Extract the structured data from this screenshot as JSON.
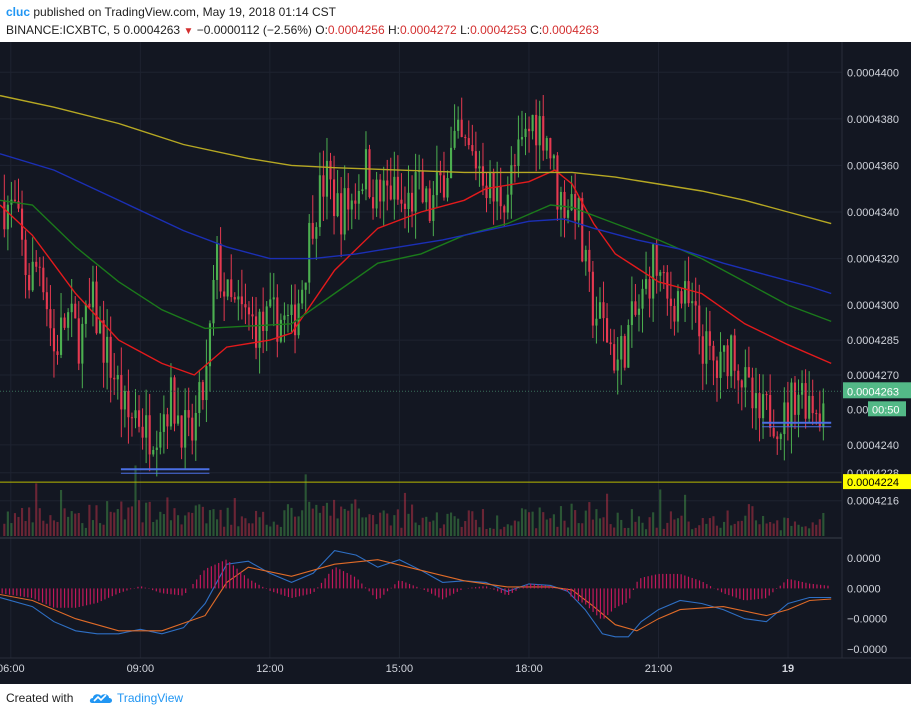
{
  "header": {
    "author": "cluc",
    "published_text": "published on TradingView.com, May 19, 2018 01:14 CST",
    "symbol": "BINANCE:ICXBTC, 5",
    "last_price": "0.0004263",
    "change": "−0.0000112 (−2.56%)",
    "open_label": "O:",
    "open": "0.0004256",
    "high_label": "H:",
    "high": "0.0004272",
    "low_label": "L:",
    "low": "0.0004253",
    "close_label": "C:",
    "close": "0.0004263"
  },
  "footer": {
    "created_with": "Created with",
    "brand": "TradingView"
  },
  "colors": {
    "background": "#131722",
    "bull": "#4caf50",
    "bear": "#e53950",
    "ema_fast": "#e31a1c",
    "ema_mid": "#1b7a1b",
    "ema_slow": "#1b2fb5",
    "ema_long": "#b6a823",
    "macd": "#2e6fc4",
    "signal": "#e06b28",
    "hist": "#c2185b",
    "support": "#4a6fe3",
    "price_label_bg": "#53b987",
    "yellow_label_bg": "#ffff00"
  },
  "chart_data": {
    "type": "candlestick",
    "symbol": "BINANCE:ICXBTC",
    "interval": "5",
    "price_axis": {
      "ticks": [
        "0.0004400",
        "0.0004380",
        "0.0004360",
        "0.0004340",
        "0.0004320",
        "0.0004300",
        "0.0004285",
        "0.0004270",
        "0.0004240",
        "0.0004228",
        "0.0004216"
      ],
      "tick_values": [
        0.00044,
        0.000438,
        0.000436,
        0.000434,
        0.000432,
        0.00043,
        0.0004285,
        0.000427,
        0.000424,
        0.0004228,
        0.0004216
      ],
      "range": [
        0.00042,
        0.0004413
      ]
    },
    "current_price_label": "0.0004263",
    "current_price": 0.0004263,
    "countdown_label": "00:50",
    "countdown_visible_prefix": "0.00",
    "horizontal_line_label": "0.0004224",
    "horizontal_line_value": 0.0004224,
    "time_axis": [
      "06:00",
      "09:00",
      "12:00",
      "15:00",
      "18:00",
      "21:00",
      "19"
    ],
    "time_axis_hours": [
      6,
      9,
      12,
      15,
      18,
      21,
      24
    ],
    "time_range_hours": [
      5.75,
      25.25
    ],
    "macd_axis": {
      "ticks": [
        "0.0000",
        "0.0000",
        "−0.0000",
        "−0.0000"
      ],
      "tick_levels": [
        1,
        0,
        -1,
        -2
      ],
      "range": [
        -2.3,
        1.6
      ]
    },
    "close_path": [
      [
        5.75,
        0.0004345
      ],
      [
        6.1,
        0.000434
      ],
      [
        6.4,
        0.000431
      ],
      [
        6.7,
        0.000432
      ],
      [
        7.0,
        0.000428
      ],
      [
        7.3,
        0.0004295
      ],
      [
        7.6,
        0.0004285
      ],
      [
        7.9,
        0.00043
      ],
      [
        8.2,
        0.000428
      ],
      [
        8.4,
        0.000427
      ],
      [
        8.7,
        0.000425
      ],
      [
        8.9,
        0.0004255
      ],
      [
        9.15,
        0.0004245
      ],
      [
        9.4,
        0.000425
      ],
      [
        9.7,
        0.000426
      ],
      [
        9.95,
        0.000425
      ],
      [
        10.15,
        0.000424
      ],
      [
        10.35,
        0.0004255
      ],
      [
        10.55,
        0.000427
      ],
      [
        10.75,
        0.000432
      ],
      [
        11.05,
        0.00043
      ],
      [
        11.4,
        0.0004295
      ],
      [
        11.8,
        0.000429
      ],
      [
        12.2,
        0.0004295
      ],
      [
        12.5,
        0.000429
      ],
      [
        12.75,
        0.000431
      ],
      [
        13.0,
        0.000434
      ],
      [
        13.3,
        0.0004355
      ],
      [
        13.6,
        0.000434
      ],
      [
        13.9,
        0.0004345
      ],
      [
        14.2,
        0.000436
      ],
      [
        14.5,
        0.0004345
      ],
      [
        14.8,
        0.000435
      ],
      [
        15.1,
        0.000434
      ],
      [
        15.4,
        0.000435
      ],
      [
        15.7,
        0.000434
      ],
      [
        16.0,
        0.0004355
      ],
      [
        16.3,
        0.000437
      ],
      [
        16.6,
        0.0004365
      ],
      [
        16.9,
        0.000436
      ],
      [
        17.2,
        0.0004345
      ],
      [
        17.5,
        0.000435
      ],
      [
        17.8,
        0.0004365
      ],
      [
        18.1,
        0.000438
      ],
      [
        18.4,
        0.0004375
      ],
      [
        18.7,
        0.0004345
      ],
      [
        18.9,
        0.0004345
      ],
      [
        19.1,
        0.0004345
      ],
      [
        19.25,
        0.000432
      ],
      [
        19.45,
        0.00043
      ],
      [
        19.75,
        0.000429
      ],
      [
        20.05,
        0.0004275
      ],
      [
        20.35,
        0.000429
      ],
      [
        20.6,
        0.00043
      ],
      [
        20.9,
        0.000432
      ],
      [
        21.2,
        0.00043
      ],
      [
        21.5,
        0.0004305
      ],
      [
        21.8,
        0.0004295
      ],
      [
        22.1,
        0.000428
      ],
      [
        22.4,
        0.000427
      ],
      [
        22.7,
        0.0004285
      ],
      [
        23.0,
        0.0004265
      ],
      [
        23.3,
        0.000425
      ],
      [
        23.6,
        0.0004255
      ],
      [
        23.9,
        0.000425
      ],
      [
        24.2,
        0.0004265
      ],
      [
        24.5,
        0.000426
      ],
      [
        24.8,
        0.0004255
      ],
      [
        25.0,
        0.0004263
      ]
    ],
    "volume_profile": [
      [
        5.75,
        0.5
      ],
      [
        6.5,
        0.5
      ],
      [
        7.5,
        0.45
      ],
      [
        8.5,
        0.8
      ],
      [
        9.0,
        0.75
      ],
      [
        10.0,
        0.6
      ],
      [
        11.0,
        0.45
      ],
      [
        12.5,
        0.55
      ],
      [
        13.5,
        0.7
      ],
      [
        15.5,
        0.45
      ],
      [
        17.5,
        0.45
      ],
      [
        18.8,
        0.55
      ],
      [
        19.5,
        0.6
      ],
      [
        20.5,
        0.45
      ],
      [
        22.0,
        0.4
      ],
      [
        23.0,
        0.45
      ],
      [
        24.0,
        0.3
      ],
      [
        25.0,
        0.3
      ]
    ],
    "series": [
      {
        "kind": "ema",
        "color_key": "ema_fast",
        "points": [
          [
            5.75,
            0.0004343
          ],
          [
            6.5,
            0.000433
          ],
          [
            7.5,
            0.0004305
          ],
          [
            8.5,
            0.0004285
          ],
          [
            9.5,
            0.0004275
          ],
          [
            10.25,
            0.000427
          ],
          [
            11.0,
            0.0004282
          ],
          [
            12.0,
            0.0004285
          ],
          [
            12.5,
            0.0004288
          ],
          [
            13.5,
            0.0004315
          ],
          [
            14.5,
            0.0004333
          ],
          [
            15.5,
            0.000434
          ],
          [
            16.5,
            0.0004345
          ],
          [
            17.0,
            0.000435
          ],
          [
            18.0,
            0.0004353
          ],
          [
            18.6,
            0.0004358
          ],
          [
            19.0,
            0.0004352
          ],
          [
            19.5,
            0.0004335
          ],
          [
            20.0,
            0.0004322
          ],
          [
            21.0,
            0.000431
          ],
          [
            22.0,
            0.0004305
          ],
          [
            23.0,
            0.0004292
          ],
          [
            24.0,
            0.0004283
          ],
          [
            25.0,
            0.0004275
          ]
        ]
      },
      {
        "kind": "ema",
        "color_key": "ema_mid",
        "points": [
          [
            5.75,
            0.0004345
          ],
          [
            6.5,
            0.0004343
          ],
          [
            7.5,
            0.0004325
          ],
          [
            8.5,
            0.000431
          ],
          [
            9.5,
            0.0004298
          ],
          [
            10.5,
            0.000429
          ],
          [
            11.5,
            0.0004291
          ],
          [
            12.5,
            0.0004292
          ],
          [
            13.5,
            0.0004305
          ],
          [
            14.5,
            0.0004318
          ],
          [
            15.5,
            0.0004322
          ],
          [
            16.5,
            0.000433
          ],
          [
            17.5,
            0.0004335
          ],
          [
            18.5,
            0.0004343
          ],
          [
            19.0,
            0.0004342
          ],
          [
            20.0,
            0.0004335
          ],
          [
            21.0,
            0.0004328
          ],
          [
            22.0,
            0.000432
          ],
          [
            23.0,
            0.000431
          ],
          [
            24.0,
            0.00043
          ],
          [
            25.0,
            0.0004293
          ]
        ]
      },
      {
        "kind": "ema",
        "color_key": "ema_slow",
        "points": [
          [
            5.75,
            0.0004365
          ],
          [
            7.0,
            0.0004358
          ],
          [
            8.5,
            0.0004345
          ],
          [
            10.0,
            0.0004332
          ],
          [
            11.0,
            0.0004325
          ],
          [
            12.0,
            0.000432
          ],
          [
            13.0,
            0.000432
          ],
          [
            14.0,
            0.0004322
          ],
          [
            15.0,
            0.0004325
          ],
          [
            16.0,
            0.0004328
          ],
          [
            17.0,
            0.0004332
          ],
          [
            18.0,
            0.0004336
          ],
          [
            18.8,
            0.0004337
          ],
          [
            19.5,
            0.0004333
          ],
          [
            20.5,
            0.0004328
          ],
          [
            21.5,
            0.0004324
          ],
          [
            22.5,
            0.0004318
          ],
          [
            23.5,
            0.0004313
          ],
          [
            24.5,
            0.0004308
          ],
          [
            25.0,
            0.0004305
          ]
        ]
      },
      {
        "kind": "ema",
        "color_key": "ema_long",
        "points": [
          [
            5.75,
            0.000439
          ],
          [
            7.0,
            0.0004385
          ],
          [
            8.5,
            0.0004378
          ],
          [
            10.0,
            0.0004369
          ],
          [
            11.5,
            0.0004363
          ],
          [
            12.5,
            0.000436
          ],
          [
            13.5,
            0.0004359
          ],
          [
            15.0,
            0.0004358
          ],
          [
            16.5,
            0.0004357
          ],
          [
            18.0,
            0.0004357
          ],
          [
            19.0,
            0.0004357
          ],
          [
            20.0,
            0.0004355
          ],
          [
            21.0,
            0.0004352
          ],
          [
            22.0,
            0.0004349
          ],
          [
            23.0,
            0.0004345
          ],
          [
            24.0,
            0.000434
          ],
          [
            25.0,
            0.0004335
          ]
        ]
      },
      {
        "kind": "macd",
        "color_key": "macd",
        "points": [
          [
            5.75,
            -0.3
          ],
          [
            6.5,
            -0.6
          ],
          [
            7.0,
            -1.1
          ],
          [
            7.5,
            -1.4
          ],
          [
            8.0,
            -1.5
          ],
          [
            8.5,
            -1.5
          ],
          [
            9.0,
            -1.35
          ],
          [
            9.5,
            -1.5
          ],
          [
            10.0,
            -1.3
          ],
          [
            10.5,
            -0.5
          ],
          [
            11.0,
            0.8
          ],
          [
            11.5,
            0.9
          ],
          [
            12.0,
            0.5
          ],
          [
            12.5,
            0.2
          ],
          [
            13.0,
            0.5
          ],
          [
            13.5,
            1.25
          ],
          [
            14.0,
            1.1
          ],
          [
            14.5,
            0.7
          ],
          [
            15.0,
            0.95
          ],
          [
            15.5,
            0.6
          ],
          [
            16.0,
            0.2
          ],
          [
            16.5,
            0.25
          ],
          [
            17.0,
            0.2
          ],
          [
            17.5,
            -0.1
          ],
          [
            18.0,
            0.15
          ],
          [
            18.5,
            0.1
          ],
          [
            18.9,
            -0.1
          ],
          [
            19.3,
            -0.7
          ],
          [
            19.7,
            -1.5
          ],
          [
            20.0,
            -1.6
          ],
          [
            20.3,
            -1.6
          ],
          [
            20.6,
            -1.1
          ],
          [
            21.0,
            -0.7
          ],
          [
            21.5,
            -0.4
          ],
          [
            22.0,
            -0.5
          ],
          [
            22.5,
            -0.7
          ],
          [
            23.0,
            -1.0
          ],
          [
            23.5,
            -1.1
          ],
          [
            24.0,
            -0.5
          ],
          [
            24.5,
            -0.3
          ],
          [
            25.0,
            -0.3
          ]
        ]
      },
      {
        "kind": "signal",
        "color_key": "signal",
        "points": [
          [
            5.75,
            -0.2
          ],
          [
            6.5,
            -0.4
          ],
          [
            7.5,
            -1.0
          ],
          [
            8.5,
            -1.4
          ],
          [
            9.5,
            -1.4
          ],
          [
            10.5,
            -0.9
          ],
          [
            11.0,
            0.2
          ],
          [
            11.5,
            0.7
          ],
          [
            12.5,
            0.4
          ],
          [
            13.5,
            0.8
          ],
          [
            14.5,
            0.95
          ],
          [
            15.5,
            0.6
          ],
          [
            16.5,
            0.25
          ],
          [
            17.5,
            0.05
          ],
          [
            18.5,
            0.05
          ],
          [
            19.0,
            -0.05
          ],
          [
            19.5,
            -0.6
          ],
          [
            20.0,
            -1.2
          ],
          [
            20.5,
            -1.4
          ],
          [
            21.0,
            -1.0
          ],
          [
            21.5,
            -0.7
          ],
          [
            22.5,
            -0.6
          ],
          [
            23.5,
            -0.9
          ],
          [
            24.0,
            -0.7
          ],
          [
            24.5,
            -0.4
          ],
          [
            25.0,
            -0.35
          ]
        ]
      },
      {
        "kind": "support",
        "color_key": "support",
        "points": [
          [
            8.55,
            0.00042295
          ],
          [
            10.6,
            0.00042295
          ]
        ]
      },
      {
        "kind": "support",
        "color_key": "support",
        "points": [
          [
            23.4,
            0.00042495
          ],
          [
            25.0,
            0.00042495
          ]
        ]
      }
    ]
  }
}
